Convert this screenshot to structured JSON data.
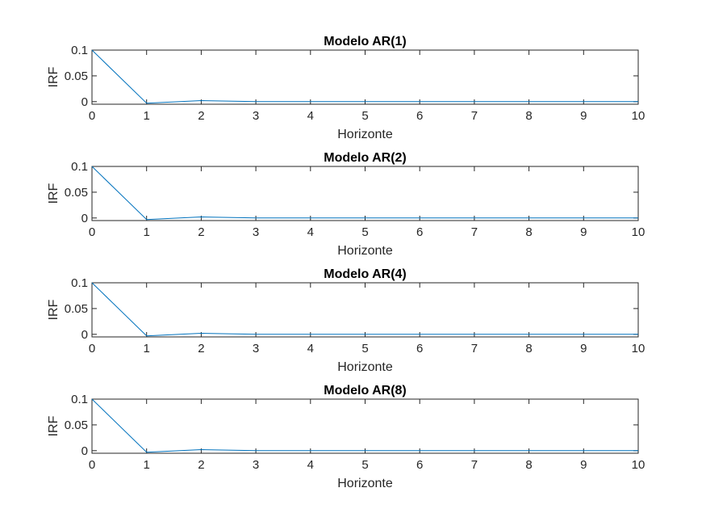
{
  "figure": {
    "colors": {
      "line": "#0072BD",
      "axis": "#262626",
      "background": "#ffffff"
    }
  },
  "chart_data": [
    {
      "type": "line",
      "title": "Modelo AR(1)",
      "xlabel": "Horizonte",
      "ylabel": "IRF",
      "xlim": [
        0,
        10
      ],
      "ylim": [
        -0.005,
        0.1
      ],
      "xticks": [
        "0",
        "1",
        "2",
        "3",
        "4",
        "5",
        "6",
        "7",
        "8",
        "9",
        "10"
      ],
      "yticks": [
        {
          "value": 0,
          "label": "0"
        },
        {
          "value": 0.05,
          "label": "0.05"
        },
        {
          "value": 0.1,
          "label": "0.1"
        }
      ],
      "grid": false,
      "series": [
        {
          "x": [
            0,
            1,
            2,
            3,
            4,
            5,
            6,
            7,
            8,
            9,
            10
          ],
          "y": [
            0.1,
            -0.003,
            0.002,
            0,
            0,
            0,
            0,
            0,
            0,
            0,
            0
          ]
        }
      ]
    },
    {
      "type": "line",
      "title": "Modelo AR(2)",
      "xlabel": "Horizonte",
      "ylabel": "IRF",
      "xlim": [
        0,
        10
      ],
      "ylim": [
        -0.005,
        0.1
      ],
      "xticks": [
        "0",
        "1",
        "2",
        "3",
        "4",
        "5",
        "6",
        "7",
        "8",
        "9",
        "10"
      ],
      "yticks": [
        {
          "value": 0,
          "label": "0"
        },
        {
          "value": 0.05,
          "label": "0.05"
        },
        {
          "value": 0.1,
          "label": "0.1"
        }
      ],
      "grid": false,
      "series": [
        {
          "x": [
            0,
            1,
            2,
            3,
            4,
            5,
            6,
            7,
            8,
            9,
            10
          ],
          "y": [
            0.1,
            -0.003,
            0.002,
            0,
            0,
            0,
            0,
            0,
            0,
            0,
            0
          ]
        }
      ]
    },
    {
      "type": "line",
      "title": "Modelo AR(4)",
      "xlabel": "Horizonte",
      "ylabel": "IRF",
      "xlim": [
        0,
        10
      ],
      "ylim": [
        -0.005,
        0.1
      ],
      "xticks": [
        "0",
        "1",
        "2",
        "3",
        "4",
        "5",
        "6",
        "7",
        "8",
        "9",
        "10"
      ],
      "yticks": [
        {
          "value": 0,
          "label": "0"
        },
        {
          "value": 0.05,
          "label": "0.05"
        },
        {
          "value": 0.1,
          "label": "0.1"
        }
      ],
      "grid": false,
      "series": [
        {
          "x": [
            0,
            1,
            2,
            3,
            4,
            5,
            6,
            7,
            8,
            9,
            10
          ],
          "y": [
            0.1,
            -0.003,
            0.002,
            0,
            0,
            0,
            0,
            0,
            0,
            0,
            0
          ]
        }
      ]
    },
    {
      "type": "line",
      "title": "Modelo AR(8)",
      "xlabel": "Horizonte",
      "ylabel": "IRF",
      "xlim": [
        0,
        10
      ],
      "ylim": [
        -0.005,
        0.1
      ],
      "xticks": [
        "0",
        "1",
        "2",
        "3",
        "4",
        "5",
        "6",
        "7",
        "8",
        "9",
        "10"
      ],
      "yticks": [
        {
          "value": 0,
          "label": "0"
        },
        {
          "value": 0.05,
          "label": "0.05"
        },
        {
          "value": 0.1,
          "label": "0.1"
        }
      ],
      "grid": false,
      "series": [
        {
          "x": [
            0,
            1,
            2,
            3,
            4,
            5,
            6,
            7,
            8,
            9,
            10
          ],
          "y": [
            0.1,
            -0.003,
            0.002,
            0,
            0,
            0,
            0,
            0,
            0,
            0,
            0
          ]
        }
      ]
    }
  ]
}
